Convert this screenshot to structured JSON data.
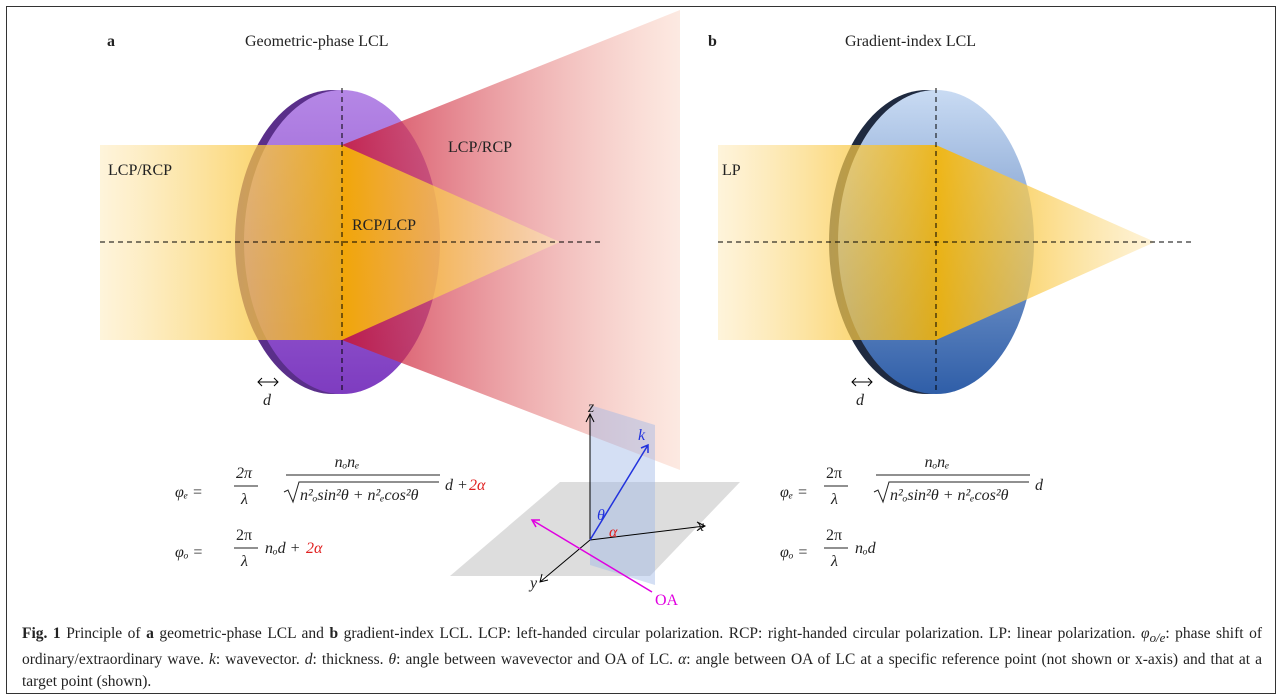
{
  "panel_a": {
    "label": "a",
    "title": "Geometric-phase LCL",
    "beam_in": "LCP/RCP",
    "beam_out_diverge": "LCP/RCP",
    "beam_out_converge": "RCP/LCP",
    "thickness": "d"
  },
  "panel_b": {
    "label": "b",
    "title": "Gradient-index LCL",
    "beam_in": "LP",
    "thickness": "d"
  },
  "axes": {
    "z": "z",
    "k": "k",
    "theta": "θ",
    "alpha": "α",
    "x": "x",
    "y": "y",
    "oa": "OA"
  },
  "equations": {
    "a_e": {
      "lhs": "φₑ =",
      "coef_num": "2π",
      "coef_den": "λ",
      "num": "nₒnₑ",
      "den": "n²ₒsin²θ + n²ₑcos²θ",
      "tail": "d +",
      "extra": "2α"
    },
    "a_o": {
      "lhs": "φₒ =",
      "coef_num": "2π",
      "coef_den": "λ",
      "tail": "nₒd +",
      "extra": "2α"
    },
    "b_e": {
      "lhs": "φₑ =",
      "coef_num": "2π",
      "coef_den": "λ",
      "num": "nₒnₑ",
      "den": "n²ₒsin²θ + n²ₑcos²θ",
      "tail": "d"
    },
    "b_o": {
      "lhs": "φₒ =",
      "coef_num": "2π",
      "coef_den": "λ",
      "tail": "nₒd"
    }
  },
  "caption": [
    "Fig. 1",
    " Principle of ",
    "a",
    " geometric-phase LCL and ",
    "b",
    " gradient-index LCL. LCP: left-handed circular polarization. RCP: right-handed circular polarization. LP: linear polarization. ",
    "φ",
    "o/e",
    ": phase shift of ordinary/extraordinary wave. ",
    "k",
    ": wavevector. ",
    "d",
    ": thickness. ",
    "θ",
    ": angle between wavevector and OA of LC. ",
    "α",
    ": angle between OA of LC at a specific reference point (not shown or x-axis) and that at a target point (shown)."
  ]
}
